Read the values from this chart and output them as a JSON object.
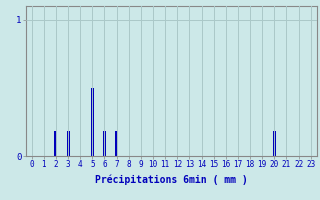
{
  "title": "",
  "xlabel": "Précipitations 6min ( mm )",
  "ylabel": "",
  "background_color": "#cce8e8",
  "bar_color": "#0000bb",
  "grid_color": "#aac8c8",
  "axis_color": "#888888",
  "text_color": "#0000bb",
  "xlim": [
    -0.5,
    23.5
  ],
  "ylim": [
    0,
    1.1
  ],
  "yticks": [
    0,
    1
  ],
  "xticks": [
    0,
    1,
    2,
    3,
    4,
    5,
    6,
    7,
    8,
    9,
    10,
    11,
    12,
    13,
    14,
    15,
    16,
    17,
    18,
    19,
    20,
    21,
    22,
    23
  ],
  "values": [
    0,
    0,
    0.18,
    0.18,
    0,
    0.5,
    0.18,
    0.18,
    0,
    0,
    0,
    0,
    0,
    0,
    0,
    0,
    0,
    0,
    0,
    0,
    0.18,
    0,
    0,
    0
  ],
  "figsize": [
    3.2,
    2.0
  ],
  "dpi": 100,
  "bar_width": 0.25,
  "xlabel_fontsize": 7,
  "tick_fontsize": 5.5,
  "ytick_fontsize": 6.5
}
